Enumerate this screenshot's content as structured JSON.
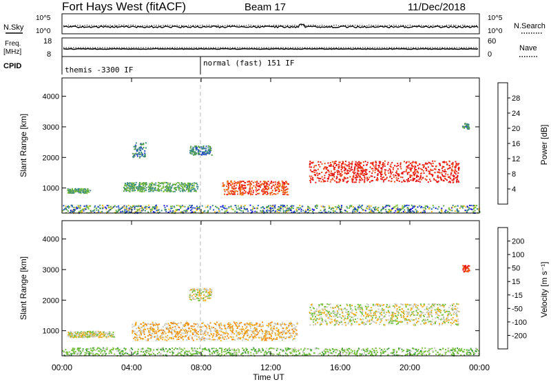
{
  "header": {
    "station": "Fort Hays West (fitACF)",
    "beam": "Beam 17",
    "date": "11/Dec/2018"
  },
  "noise_panel": {
    "left_label": "N.Sky",
    "right_label": "N.Search",
    "left_ticks": [
      "10^5",
      "10^0"
    ],
    "right_ticks": [
      "10^5",
      "10^0"
    ]
  },
  "freq_panel": {
    "left_label_1": "Freq.",
    "left_label_2": "[MHz]",
    "right_label": "Nave",
    "left_ticks": [
      "18",
      "8"
    ],
    "right_ticks": [
      "60",
      "0"
    ]
  },
  "cpid_panel": {
    "label": "CPID",
    "modes": [
      {
        "text": "themis -3300 IF",
        "start_hour": 0.0
      },
      {
        "text": "normal (fast) 151 IF",
        "start_hour": 8.0
      }
    ]
  },
  "chart_data": [
    {
      "type": "heatmap",
      "name": "power",
      "ylabel": "Slant Range [km]",
      "yticks": [
        1000,
        2000,
        3000,
        4000
      ],
      "ylim": [
        180,
        4600
      ],
      "xlim_hours": [
        0,
        24
      ],
      "colorbar": {
        "label": "Power [dB]",
        "ticks": [
          "4",
          "8",
          "12",
          "16",
          "20",
          "24",
          "28"
        ],
        "colors": [
          "#1010e0",
          "#2850c0",
          "#3a8a86",
          "#56a04a",
          "#7fc03c",
          "#e8c020",
          "#f0a020",
          "#f07818",
          "#f04818",
          "#e81010"
        ]
      },
      "regions": [
        {
          "t0": 0.3,
          "t1": 1.6,
          "r0": 850,
          "r1": 1000,
          "level": 3
        },
        {
          "t0": 3.5,
          "t1": 7.8,
          "r0": 900,
          "r1": 1200,
          "level": 3
        },
        {
          "t0": 4.0,
          "t1": 4.8,
          "r0": 2000,
          "r1": 2500,
          "level": 2
        },
        {
          "t0": 7.3,
          "t1": 8.6,
          "r0": 2100,
          "r1": 2400,
          "level": 2
        },
        {
          "t0": 9.2,
          "t1": 13.0,
          "r0": 800,
          "r1": 1250,
          "level": 8
        },
        {
          "t0": 14.2,
          "t1": 22.8,
          "r0": 1200,
          "r1": 1900,
          "level": 9
        },
        {
          "t0": 23.0,
          "t1": 23.4,
          "r0": 2950,
          "r1": 3150,
          "level": 2
        }
      ]
    },
    {
      "type": "heatmap",
      "name": "velocity",
      "ylabel": "Slant Range [km]",
      "yticks": [
        1000,
        2000,
        3000,
        4000
      ],
      "ylim": [
        180,
        4600
      ],
      "xlim_hours": [
        0,
        24
      ],
      "xticks": [
        "00:00",
        "04:00",
        "08:00",
        "12:00",
        "16:00",
        "20:00",
        "00:00"
      ],
      "xlabel": "Time UT",
      "colorbar": {
        "label": "Velocity [m s⁻¹]",
        "ticks": [
          "200",
          "100",
          "50",
          "15",
          "-15",
          "-50",
          "-100",
          "-200"
        ],
        "colors": [
          "#1830c0",
          "#2a7a8a",
          "#3c9a3c",
          "#78c040",
          "#c8c8c0",
          "#f0b020",
          "#f08a10",
          "#f05010",
          "#e81010"
        ]
      },
      "regions": [
        {
          "t0": 0.3,
          "t1": 3.0,
          "r0": 800,
          "r1": 1000,
          "level": 4
        },
        {
          "t0": 4.0,
          "t1": 13.5,
          "r0": 700,
          "r1": 1300,
          "level": 5
        },
        {
          "t0": 7.3,
          "t1": 8.6,
          "r0": 2000,
          "r1": 2400,
          "level": 4
        },
        {
          "t0": 14.2,
          "t1": 22.8,
          "r0": 1200,
          "r1": 1900,
          "level": 4
        },
        {
          "t0": 23.0,
          "t1": 23.4,
          "r0": 2950,
          "r1": 3150,
          "level": 8
        }
      ]
    }
  ]
}
